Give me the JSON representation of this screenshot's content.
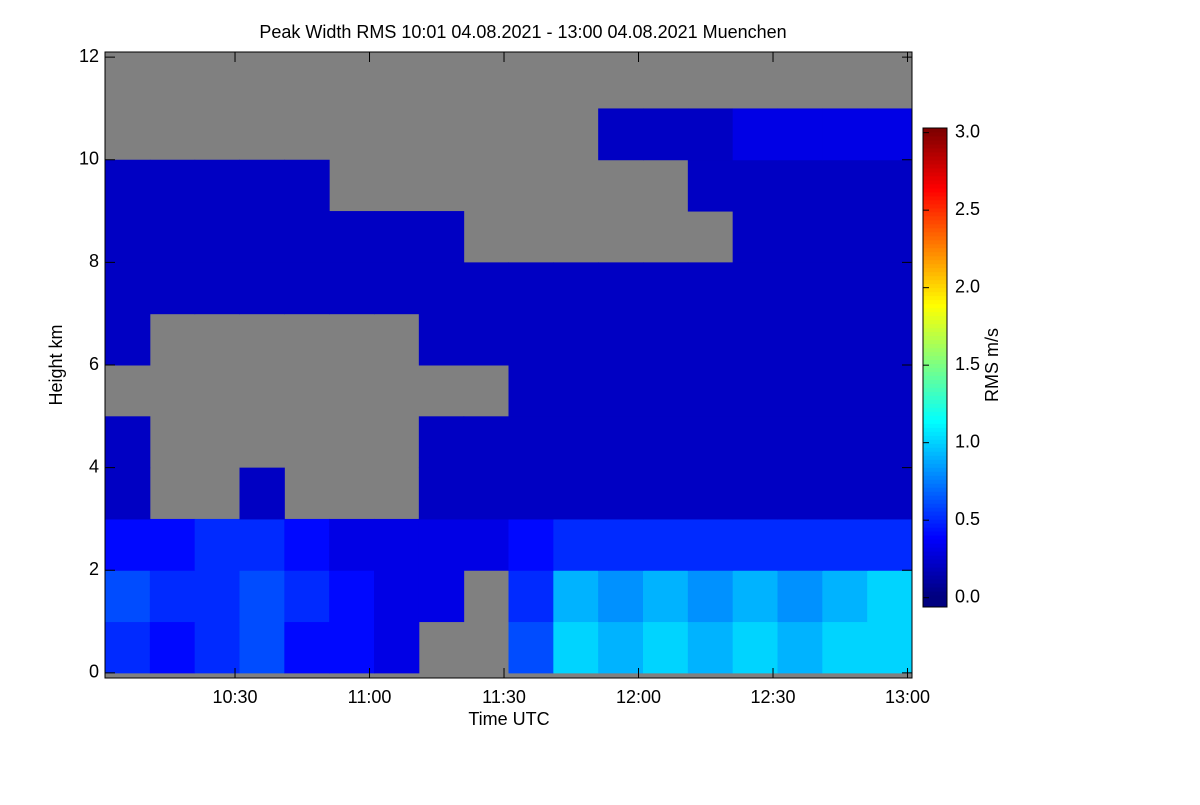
{
  "chart_data": {
    "type": "heatmap",
    "title": "Peak Width RMS   10:01 04.08.2021 - 13:00 04.08.2021 Muenchen",
    "x_label": "Time UTC",
    "y_label": "Height km",
    "colorbar_label": "RMS m/s",
    "xbins": [
      601,
      611,
      621,
      631,
      641,
      651,
      661,
      671,
      681,
      691,
      701,
      711,
      721,
      731,
      741,
      751,
      761,
      771,
      781
    ],
    "ybins": [
      0,
      1,
      2,
      3,
      4,
      5,
      6,
      7,
      8,
      9,
      10,
      11,
      12
    ],
    "z": [
      [
        0.5,
        0.4,
        0.5,
        0.6,
        0.4,
        0.4,
        0.3,
        null,
        null,
        0.6,
        1.0,
        0.9,
        1.0,
        0.9,
        1.0,
        0.9,
        1.0,
        1.0
      ],
      [
        0.6,
        0.5,
        0.5,
        0.6,
        0.5,
        0.4,
        0.3,
        0.3,
        null,
        0.5,
        0.9,
        0.8,
        0.9,
        0.8,
        0.9,
        0.8,
        0.9,
        1.0
      ],
      [
        0.4,
        0.4,
        0.5,
        0.5,
        0.4,
        0.3,
        0.3,
        0.3,
        0.3,
        0.4,
        0.5,
        0.5,
        0.5,
        0.5,
        0.5,
        0.5,
        0.5,
        0.5
      ],
      [
        0.2,
        null,
        null,
        0.2,
        null,
        null,
        null,
        0.2,
        0.2,
        0.2,
        0.2,
        0.2,
        0.2,
        0.2,
        0.2,
        0.2,
        0.2,
        0.2
      ],
      [
        0.2,
        null,
        null,
        null,
        null,
        null,
        null,
        0.2,
        0.2,
        0.2,
        0.2,
        0.2,
        0.2,
        0.2,
        0.2,
        0.2,
        0.2,
        0.2
      ],
      [
        null,
        null,
        null,
        null,
        null,
        null,
        null,
        null,
        null,
        0.2,
        0.2,
        0.2,
        0.2,
        0.2,
        0.2,
        0.2,
        0.2,
        0.2
      ],
      [
        0.2,
        null,
        null,
        null,
        null,
        null,
        null,
        0.2,
        0.2,
        0.2,
        0.2,
        0.2,
        0.2,
        0.2,
        0.2,
        0.2,
        0.2,
        0.2
      ],
      [
        0.2,
        0.2,
        0.2,
        0.2,
        0.2,
        0.2,
        0.2,
        0.2,
        0.2,
        0.2,
        0.2,
        0.2,
        0.2,
        0.2,
        0.2,
        0.2,
        0.2,
        0.2
      ],
      [
        0.2,
        0.2,
        0.2,
        0.2,
        0.2,
        0.2,
        0.2,
        0.2,
        null,
        null,
        null,
        null,
        null,
        null,
        0.2,
        0.2,
        0.2,
        0.2
      ],
      [
        0.2,
        0.2,
        0.2,
        0.2,
        0.2,
        null,
        null,
        null,
        null,
        null,
        null,
        null,
        null,
        0.2,
        0.2,
        0.2,
        0.2,
        0.2
      ],
      [
        null,
        null,
        null,
        null,
        null,
        null,
        null,
        null,
        null,
        null,
        null,
        0.2,
        0.2,
        0.2,
        0.3,
        0.3,
        0.3,
        0.3
      ],
      [
        null,
        null,
        null,
        null,
        null,
        null,
        null,
        null,
        null,
        null,
        null,
        null,
        null,
        null,
        null,
        null,
        null,
        null
      ]
    ],
    "missing_color": "#808080",
    "xlim": [
      601,
      781
    ],
    "xticks": [
      {
        "value": 630,
        "label": "10:30"
      },
      {
        "value": 660,
        "label": "11:00"
      },
      {
        "value": 690,
        "label": "11:30"
      },
      {
        "value": 720,
        "label": "12:00"
      },
      {
        "value": 750,
        "label": "12:30"
      },
      {
        "value": 780,
        "label": "13:00"
      }
    ],
    "ylim": [
      -0.1,
      12.1
    ],
    "yticks": [
      0,
      2,
      4,
      6,
      8,
      10,
      12
    ],
    "clim": [
      -0.06,
      3.03
    ],
    "cticks": [
      {
        "value": 0,
        "label": "0.0"
      },
      0.5,
      {
        "value": 1,
        "label": "1.0"
      },
      1.5,
      {
        "value": 2,
        "label": "2.0"
      },
      2.5,
      {
        "value": 3,
        "label": "3.0"
      }
    ],
    "grid": false
  }
}
